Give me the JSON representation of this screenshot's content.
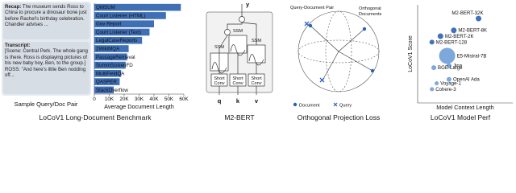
{
  "sample": {
    "caption": "Sample Query/Doc Pair",
    "recap_label": "Recap:",
    "recap": "The museum sends Ross to China to procure a dinosaur bone just before Rachel's birthday celebration. Chandler advises ...",
    "transcript_label": "Transcript:",
    "transcript": "[Scene: Central Perk. The whole gang is there. Ross is displaying pictures of his new baby boy, Ben, to the group.] ROSS: \"And here's little Ben nodding off..."
  },
  "benchmark_title": "LoCoV1 Long-Document Benchmark",
  "diagram": {
    "caption": "M2-BERT",
    "ssm": [
      "SSM",
      "SSM",
      "SSM"
    ],
    "short_conv": [
      [
        "Short",
        "Conv"
      ],
      [
        "Short",
        "Conv"
      ],
      [
        "Short",
        "Conv"
      ]
    ],
    "inputs": [
      "q",
      "k",
      "v"
    ],
    "output": "y"
  },
  "projection": {
    "caption": "Orthogonal Projection Loss",
    "pair_label": "Query-Document Pair",
    "orth_label": [
      "Orthogonal",
      "Documents"
    ],
    "legend": [
      "Document",
      "Query"
    ]
  },
  "chart_data": [
    {
      "type": "bar",
      "orientation": "horizontal",
      "xlabel": "Average Document Length",
      "categories": [
        "QMSUM",
        "Court Listener (HTML)",
        "Gov Report",
        "Court Listener (Text)",
        "LegalCaseReports",
        "2WikiMQA",
        "PassageRetrieval",
        "SummScreenFD",
        "MultiFieldQA",
        "QASPER",
        "StackOverflow"
      ],
      "values": [
        58000,
        48000,
        40000,
        37000,
        32000,
        23000,
        22000,
        21000,
        18000,
        17000,
        13000
      ],
      "color": "#3f6fb5",
      "xlim": [
        0,
        60000
      ],
      "xticks": [
        0,
        {
          "value": 10000,
          "label": "10K"
        },
        {
          "value": 20000,
          "label": "20K"
        },
        {
          "value": 30000,
          "label": "30K"
        },
        {
          "value": 40000,
          "label": "40K"
        },
        {
          "value": 50000,
          "label": "50K"
        },
        {
          "value": 60000,
          "label": "60K"
        }
      ]
    },
    {
      "type": "scatter",
      "title": "LoCoV1 Model Perf",
      "xlabel": "Model Context Length",
      "ylabel": "LoCoV1 Score",
      "xlim": [
        0,
        100
      ],
      "ylim": [
        0,
        100
      ],
      "point_labels": [
        "M2-BERT-32K",
        "M2-BERT-8K",
        "M2-BERT-2K",
        "M2-BERT-128",
        "E5-Mistral-7B",
        "Jina",
        "BGE-Large",
        "OpenAI Ada",
        "Voyage-1",
        "Cohere-3"
      ],
      "x": [
        64,
        38,
        24,
        15,
        31,
        33,
        17,
        33,
        20,
        15
      ],
      "values": [
        86,
        74,
        68,
        62,
        48,
        38,
        36,
        24,
        20,
        14
      ],
      "sizes": [
        3.5,
        3.5,
        3.5,
        3,
        10,
        3,
        3,
        3,
        2.5,
        2.5
      ],
      "colors": [
        "#2a62b8",
        "#2a62b8",
        "#2a62b8",
        "#2a62b8",
        "#6f9fd8",
        "#6f9fd8",
        "#6f9fd8",
        "#6f9fd8",
        "#6f9fd8",
        "#6f9fd8"
      ]
    }
  ]
}
